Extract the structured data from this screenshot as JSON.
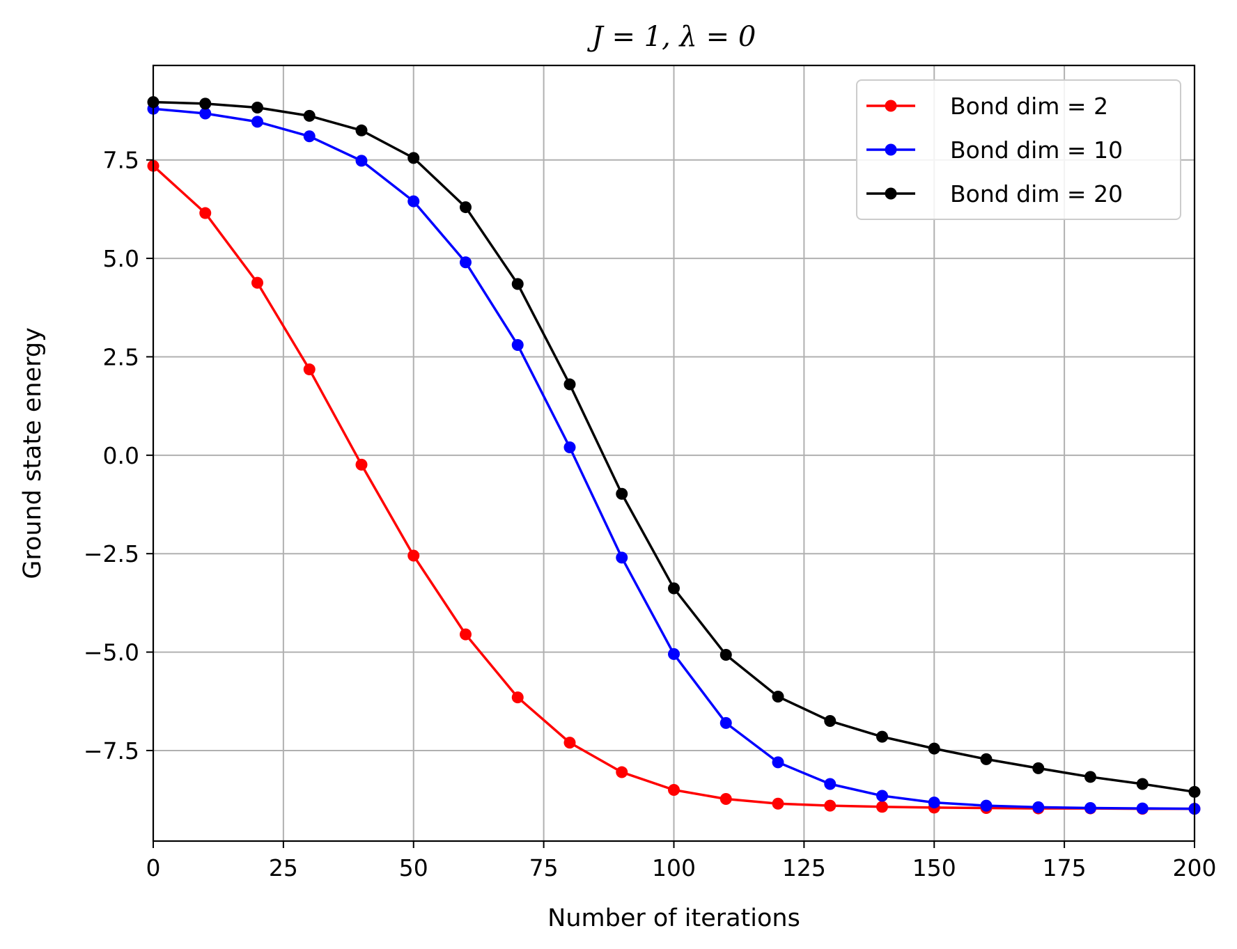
{
  "chart_data": {
    "type": "line",
    "title": "J = 1, λ = 0",
    "xlabel": "Number of iterations",
    "ylabel": "Ground state energy",
    "xlim": [
      0,
      200
    ],
    "ylim": [
      -9.8,
      9.9
    ],
    "xticks": [
      0,
      25,
      50,
      75,
      100,
      125,
      150,
      175,
      200
    ],
    "xtick_labels": [
      "0",
      "25",
      "50",
      "75",
      "100",
      "125",
      "150",
      "175",
      "200"
    ],
    "yticks": [
      7.5,
      5.0,
      2.5,
      0.0,
      -2.5,
      -5.0,
      -7.5
    ],
    "ytick_labels": [
      "7.5",
      "5.0",
      "2.5",
      "0.0",
      "−2.5",
      "−5.0",
      "−7.5"
    ],
    "grid": true,
    "legend_position": "top-right",
    "x": [
      0,
      10,
      20,
      30,
      40,
      50,
      60,
      70,
      80,
      90,
      100,
      110,
      120,
      130,
      140,
      150,
      160,
      170,
      180,
      190,
      200
    ],
    "series": [
      {
        "name": "Bond dim = 2",
        "color": "#ff0000",
        "values": [
          7.35,
          6.15,
          4.38,
          2.18,
          -0.24,
          -2.55,
          -4.55,
          -6.15,
          -7.3,
          -8.05,
          -8.5,
          -8.73,
          -8.85,
          -8.9,
          -8.93,
          -8.95,
          -8.96,
          -8.97,
          -8.97,
          -8.98,
          -8.98
        ]
      },
      {
        "name": "Bond dim = 10",
        "color": "#0000ff",
        "values": [
          8.8,
          8.68,
          8.47,
          8.1,
          7.48,
          6.45,
          4.9,
          2.8,
          0.2,
          -2.6,
          -5.05,
          -6.8,
          -7.8,
          -8.35,
          -8.65,
          -8.82,
          -8.9,
          -8.94,
          -8.96,
          -8.97,
          -8.98
        ]
      },
      {
        "name": "Bond dim = 20",
        "color": "#000000",
        "values": [
          8.97,
          8.93,
          8.83,
          8.62,
          8.25,
          7.55,
          6.3,
          4.35,
          1.8,
          -0.98,
          -3.38,
          -5.07,
          -6.13,
          -6.75,
          -7.15,
          -7.45,
          -7.72,
          -7.95,
          -8.17,
          -8.35,
          -8.55
        ]
      }
    ]
  }
}
